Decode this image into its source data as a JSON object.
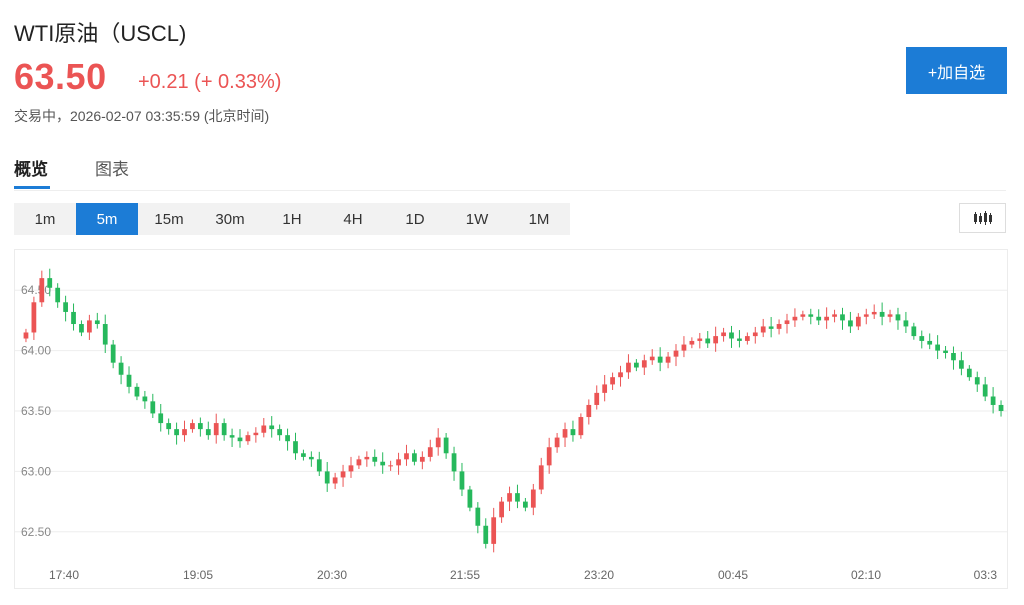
{
  "header": {
    "title": "WTI原油（USCL)",
    "price": "63.50",
    "change": "+0.21 (+ 0.33%)",
    "status": "交易中，2026-02-07 03:35:59 (北京时间)"
  },
  "actions": {
    "add_watchlist_label": "+加自选"
  },
  "tabs": [
    {
      "label": "概览",
      "active": true
    },
    {
      "label": "图表",
      "active": false
    }
  ],
  "periods": [
    {
      "label": "1m",
      "active": false
    },
    {
      "label": "5m",
      "active": true
    },
    {
      "label": "15m",
      "active": false
    },
    {
      "label": "30m",
      "active": false
    },
    {
      "label": "1H",
      "active": false
    },
    {
      "label": "4H",
      "active": false
    },
    {
      "label": "1D",
      "active": false
    },
    {
      "label": "1W",
      "active": false
    },
    {
      "label": "1M",
      "active": false
    }
  ],
  "chart_type_icon": "candlestick-chart-icon",
  "colors": {
    "up": "#eb5454",
    "down": "#26b85c",
    "accent": "#1c7cd6"
  },
  "chart_data": {
    "type": "candlestick",
    "up_color": "#eb5454",
    "down_color": "#26b85c",
    "y_ticks": [
      "62.50",
      "63.00",
      "63.50",
      "64.00",
      "64.50"
    ],
    "ylim": [
      62.25,
      64.75
    ],
    "x_ticks": [
      "17:40",
      "19:05",
      "20:30",
      "21:55",
      "23:20",
      "00:45",
      "02:10",
      "03:3"
    ],
    "grid": true,
    "close_series": [
      64.15,
      64.4,
      64.6,
      64.52,
      64.4,
      64.32,
      64.22,
      64.15,
      64.25,
      64.22,
      64.05,
      63.9,
      63.8,
      63.7,
      63.62,
      63.58,
      63.48,
      63.4,
      63.35,
      63.3,
      63.35,
      63.4,
      63.35,
      63.3,
      63.4,
      63.3,
      63.28,
      63.25,
      63.3,
      63.32,
      63.38,
      63.35,
      63.3,
      63.25,
      63.15,
      63.12,
      63.1,
      63.0,
      62.9,
      62.95,
      63.0,
      63.05,
      63.1,
      63.12,
      63.08,
      63.05,
      63.05,
      63.1,
      63.15,
      63.08,
      63.12,
      63.2,
      63.28,
      63.15,
      63.0,
      62.85,
      62.7,
      62.55,
      62.4,
      62.62,
      62.75,
      62.82,
      62.75,
      62.7,
      62.85,
      63.05,
      63.2,
      63.28,
      63.35,
      63.3,
      63.45,
      63.55,
      63.65,
      63.72,
      63.78,
      63.82,
      63.9,
      63.86,
      63.92,
      63.95,
      63.9,
      63.95,
      64.0,
      64.05,
      64.08,
      64.1,
      64.06,
      64.12,
      64.15,
      64.1,
      64.08,
      64.12,
      64.15,
      64.2,
      64.18,
      64.22,
      64.25,
      64.28,
      64.3,
      64.28,
      64.25,
      64.28,
      64.3,
      64.25,
      64.2,
      64.28,
      64.3,
      64.32,
      64.28,
      64.3,
      64.25,
      64.2,
      64.12,
      64.08,
      64.05,
      64.0,
      63.98,
      63.92,
      63.85,
      63.78,
      63.72,
      63.62,
      63.55,
      63.5
    ]
  }
}
